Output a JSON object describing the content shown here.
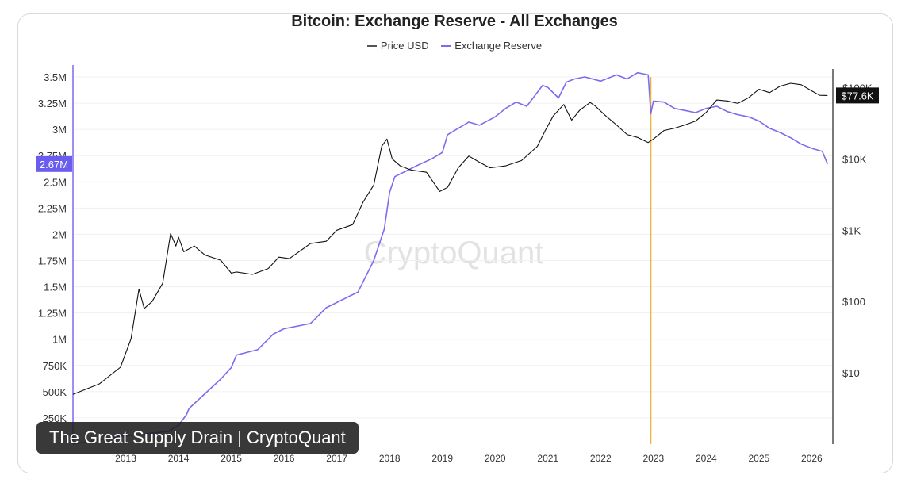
{
  "chart_data": {
    "type": "line",
    "title": "Bitcoin: Exchange Reserve - All Exchanges",
    "watermark": "CryptoQuant",
    "caption": "The Great Supply Drain | CryptoQuant",
    "legend": [
      {
        "name": "Price USD",
        "color": "#555555"
      },
      {
        "name": "Exchange Reserve",
        "color": "#7b6cf0"
      }
    ],
    "colors": {
      "reserve": "#7b6cf0",
      "price": "#111111",
      "marker": "#f0b33a",
      "badge_reserve": "#6b5cf0",
      "badge_price": "#111111"
    },
    "x_labels": [
      "2013",
      "2014",
      "2015",
      "2016",
      "2017",
      "2018",
      "2019",
      "2020",
      "2021",
      "2022",
      "2023",
      "2024",
      "2025",
      "2026"
    ],
    "x_range": [
      2012.0,
      2026.4
    ],
    "left_axis": {
      "labels": [
        "250K",
        "500K",
        "750K",
        "1M",
        "1.25M",
        "1.5M",
        "1.75M",
        "2M",
        "2.25M",
        "2.5M",
        "2.75M",
        "3M",
        "3.25M",
        "3.5M"
      ],
      "values": [
        250000,
        500000,
        750000,
        1000000,
        1250000,
        1500000,
        1750000,
        2000000,
        2250000,
        2500000,
        2750000,
        3000000,
        3250000,
        3500000
      ],
      "ylim": [
        0,
        3500000
      ]
    },
    "right_axis": {
      "labels": [
        "$10",
        "$100",
        "$1K",
        "$10K",
        "$100K"
      ],
      "values": [
        10,
        100,
        1000,
        10000,
        100000
      ],
      "scale": "log",
      "ylim_log10": [
        0.0,
        5.15
      ]
    },
    "current_reserve_label": "2.67M",
    "current_price_label": "$77.6K",
    "event_marker_year": 2022.95,
    "series": [
      {
        "name": "Exchange Reserve",
        "axis": "left",
        "x": [
          2012.0,
          2012.6,
          2013.0,
          2013.8,
          2014.0,
          2014.15,
          2014.2,
          2014.5,
          2014.8,
          2015.0,
          2015.1,
          2015.5,
          2015.8,
          2016.0,
          2016.5,
          2016.8,
          2017.0,
          2017.4,
          2017.7,
          2017.9,
          2018.0,
          2018.1,
          2018.3,
          2018.5,
          2018.8,
          2019.0,
          2019.1,
          2019.3,
          2019.5,
          2019.7,
          2020.0,
          2020.2,
          2020.4,
          2020.6,
          2020.9,
          2021.0,
          2021.2,
          2021.35,
          2021.5,
          2021.7,
          2022.0,
          2022.3,
          2022.5,
          2022.7,
          2022.9,
          2022.95,
          2023.0,
          2023.2,
          2023.4,
          2023.6,
          2023.8,
          2024.0,
          2024.2,
          2024.4,
          2024.6,
          2024.8,
          2025.0,
          2025.2,
          2025.4,
          2025.6,
          2025.8,
          2026.0,
          2026.2,
          2026.3
        ],
        "values": [
          0,
          50000,
          80000,
          120000,
          180000,
          280000,
          340000,
          480000,
          620000,
          730000,
          850000,
          900000,
          1050000,
          1100000,
          1150000,
          1300000,
          1350000,
          1450000,
          1750000,
          2050000,
          2400000,
          2550000,
          2600000,
          2650000,
          2720000,
          2780000,
          2950000,
          3010000,
          3070000,
          3040000,
          3120000,
          3200000,
          3260000,
          3220000,
          3420000,
          3400000,
          3300000,
          3450000,
          3480000,
          3500000,
          3460000,
          3520000,
          3480000,
          3540000,
          3520000,
          3150000,
          3270000,
          3260000,
          3200000,
          3180000,
          3160000,
          3200000,
          3220000,
          3170000,
          3140000,
          3120000,
          3080000,
          3010000,
          2970000,
          2920000,
          2860000,
          2820000,
          2790000,
          2670000
        ]
      },
      {
        "name": "Price USD",
        "axis": "right",
        "scale": "log",
        "x": [
          2012.0,
          2012.5,
          2012.9,
          2013.1,
          2013.25,
          2013.35,
          2013.5,
          2013.7,
          2013.85,
          2013.95,
          2014.0,
          2014.1,
          2014.3,
          2014.5,
          2014.8,
          2015.0,
          2015.1,
          2015.4,
          2015.7,
          2015.9,
          2016.1,
          2016.5,
          2016.8,
          2017.0,
          2017.3,
          2017.5,
          2017.7,
          2017.85,
          2017.95,
          2018.05,
          2018.2,
          2018.4,
          2018.7,
          2018.95,
          2019.1,
          2019.3,
          2019.5,
          2019.7,
          2019.9,
          2020.2,
          2020.5,
          2020.8,
          2020.95,
          2021.1,
          2021.3,
          2021.45,
          2021.6,
          2021.8,
          2021.9,
          2022.1,
          2022.3,
          2022.5,
          2022.7,
          2022.9,
          2023.0,
          2023.2,
          2023.4,
          2023.6,
          2023.8,
          2024.0,
          2024.2,
          2024.4,
          2024.6,
          2024.8,
          2025.0,
          2025.2,
          2025.4,
          2025.6,
          2025.8,
          2026.0,
          2026.15,
          2026.3
        ],
        "values": [
          5,
          7,
          12,
          30,
          150,
          80,
          100,
          180,
          900,
          600,
          800,
          500,
          600,
          450,
          380,
          250,
          260,
          240,
          290,
          420,
          400,
          650,
          700,
          1000,
          1200,
          2500,
          4300,
          15000,
          19000,
          10000,
          8000,
          7000,
          6500,
          3500,
          4000,
          7500,
          11000,
          9000,
          7500,
          8000,
          9500,
          15000,
          25000,
          40000,
          58000,
          35000,
          48000,
          62000,
          55000,
          40000,
          30000,
          22000,
          20000,
          17000,
          19000,
          25000,
          27000,
          30000,
          34000,
          45000,
          67000,
          65000,
          60000,
          72000,
          95000,
          85000,
          105000,
          115000,
          110000,
          90000,
          78000,
          77600
        ]
      }
    ]
  }
}
